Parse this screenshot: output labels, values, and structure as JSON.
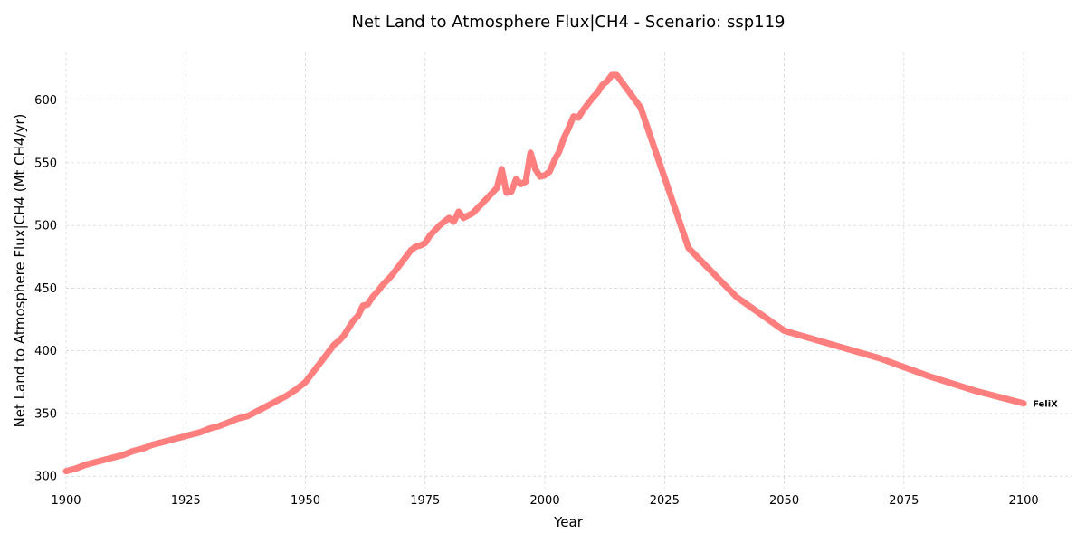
{
  "chart_data": {
    "type": "line",
    "title": "Net Land to Atmosphere Flux|CH4 - Scenario: ssp119",
    "xlabel": "Year",
    "ylabel": "Net Land to Atmosphere Flux|CH4 (Mt CH4/yr)",
    "xlim": [
      1900,
      2110
    ],
    "ylim": [
      290,
      638
    ],
    "xticks": [
      1900,
      1925,
      1950,
      1975,
      2000,
      2025,
      2050,
      2075,
      2100
    ],
    "yticks": [
      300,
      350,
      400,
      450,
      500,
      550,
      600
    ],
    "grid": true,
    "colors": {
      "series": "#ff7f7f"
    },
    "series": [
      {
        "name": "FeliX",
        "x": [
          1900,
          1902,
          1904,
          1906,
          1908,
          1910,
          1912,
          1914,
          1916,
          1918,
          1920,
          1922,
          1924,
          1926,
          1928,
          1930,
          1932,
          1934,
          1936,
          1938,
          1940,
          1942,
          1944,
          1946,
          1948,
          1950,
          1952,
          1954,
          1956,
          1957,
          1958,
          1960,
          1961,
          1962,
          1963,
          1964,
          1965,
          1966,
          1967,
          1968,
          1970,
          1972,
          1973,
          1974,
          1975,
          1976,
          1977,
          1978,
          1979,
          1980,
          1981,
          1982,
          1983,
          1984,
          1985,
          1986,
          1988,
          1990,
          1991,
          1992,
          1993,
          1994,
          1995,
          1996,
          1997,
          1998,
          1999,
          2000,
          2001,
          2002,
          2003,
          2004,
          2005,
          2006,
          2007,
          2008,
          2009,
          2010,
          2011,
          2012,
          2013,
          2014,
          2015,
          2020,
          2030,
          2040,
          2050,
          2060,
          2070,
          2080,
          2090,
          2100
        ],
        "values": [
          304,
          306,
          309,
          311,
          313,
          315,
          317,
          320,
          322,
          325,
          327,
          329,
          331,
          333,
          335,
          338,
          340,
          343,
          346,
          348,
          352,
          356,
          360,
          364,
          369,
          375,
          385,
          395,
          405,
          408,
          412,
          424,
          428,
          436,
          437,
          443,
          447,
          452,
          456,
          460,
          470,
          480,
          483,
          484,
          486,
          492,
          496,
          500,
          503,
          506,
          503,
          511,
          506,
          508,
          510,
          514,
          522,
          530,
          545,
          526,
          527,
          537,
          533,
          535,
          558,
          545,
          539,
          540,
          543,
          552,
          559,
          570,
          578,
          587,
          586,
          592,
          597,
          602,
          606,
          612,
          615,
          620,
          620,
          594,
          482,
          443,
          416,
          405,
          394,
          380,
          368,
          358
        ]
      }
    ]
  }
}
